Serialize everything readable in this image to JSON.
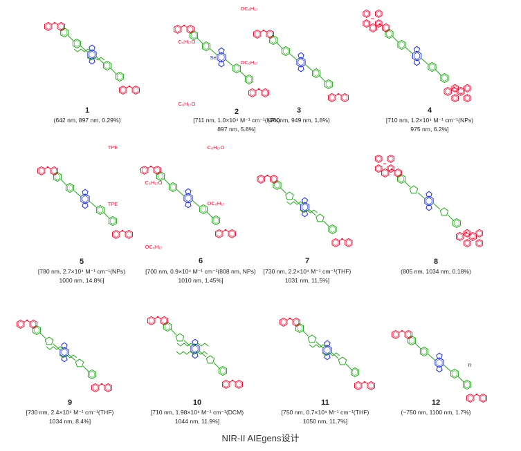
{
  "figure_caption": "NIR-II AIEgens设计",
  "colors": {
    "acceptor": "#1a2bd6",
    "pi_bridge": "#22a61a",
    "donor": "#e8153a"
  },
  "compounds": [
    {
      "id": "1",
      "cap1": "(642 nm, 897 nm, 0.29%)",
      "cap2": "",
      "labels": []
    },
    {
      "id": "2",
      "cap1": "[711 nm, 1.0×10⁴ M⁻¹ cm⁻¹(NPs)",
      "cap2": "897 nm, 5.8%]",
      "labels": [
        "OC₈H₁₇",
        "OC₈H₁₇",
        "C₈H₁₇O",
        "C₈H₁₇O",
        "Se"
      ]
    },
    {
      "id": "3",
      "cap1": "(700nm, 949 nm, 1.8%)",
      "cap2": "",
      "labels": []
    },
    {
      "id": "4",
      "cap1": "[710 nm, 1.2×10⁴ M⁻¹ cm⁻¹(NPs)",
      "cap2": "975 nm, 6.2%]",
      "labels": []
    },
    {
      "id": "5",
      "cap1": "[780 nm, 2.7×10⁴ M⁻¹ cm⁻¹(NPs)",
      "cap2": "1000 nm, 14.8%]",
      "labels": [
        "TPE",
        "TPE"
      ]
    },
    {
      "id": "6",
      "cap1": "[700 nm, 0.9×10⁴ M⁻¹ cm⁻¹(808 nm, NPs)",
      "cap2": "1010 nm, 1.45%]",
      "labels": [
        "C₈H₁₇O",
        "OC₈H₁₇",
        "C₈H₁₇O",
        "OC₈H₁₇"
      ]
    },
    {
      "id": "7",
      "cap1": "[730 nm, 2.2×10⁴ M⁻¹ cm⁻¹(THF)",
      "cap2": "1031 nm, 11.5%]",
      "labels": []
    },
    {
      "id": "8",
      "cap1": "(805 nm, 1034 nm, 0.18%)",
      "cap2": "",
      "labels": []
    },
    {
      "id": "9",
      "cap1": "[730 nm, 2.4×10⁴ M⁻¹ cm⁻¹(THF)",
      "cap2": "1034 nm, 8.4%]",
      "labels": []
    },
    {
      "id": "10",
      "cap1": "[710 nm, 1.98×10⁴ M⁻¹ cm⁻¹(DCM)",
      "cap2": "1044 nm, 11.9%]",
      "labels": []
    },
    {
      "id": "11",
      "cap1": "[750 nm, 0.7×10⁴ M⁻¹ cm⁻¹(THF)",
      "cap2": "1050 nm, 11.7%]",
      "labels": []
    },
    {
      "id": "12",
      "cap1": "(~750 nm, 1100 nm, 1.7%)",
      "cap2": "",
      "labels": [
        "n"
      ]
    }
  ]
}
